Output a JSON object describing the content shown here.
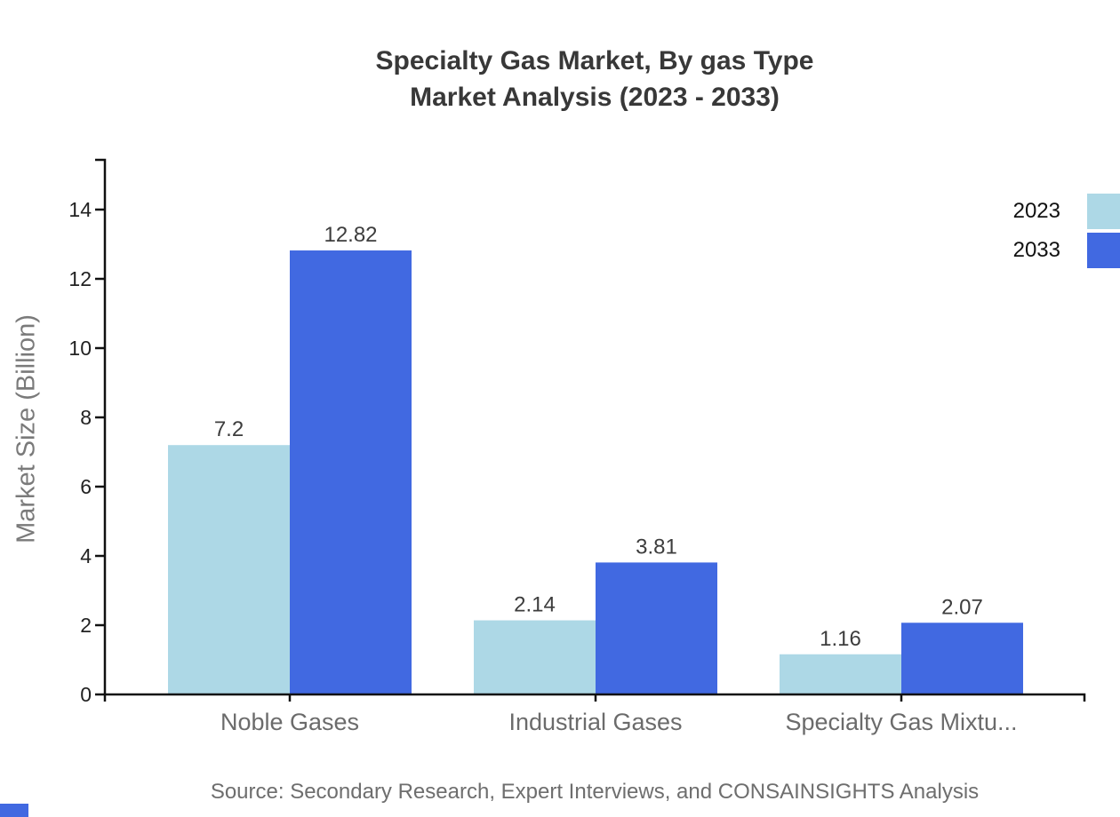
{
  "page": {
    "background": "#ffffff"
  },
  "accent_color": "#4169E1",
  "chart_data": {
    "type": "bar",
    "title": "Specialty Gas Market, By gas Type",
    "subtitle": "Market Analysis (2023 - 2033)",
    "ylabel": "Market Size (Billion)",
    "categories": [
      "Noble Gases",
      "Industrial Gases",
      "Specialty Gas Mixtu..."
    ],
    "series": [
      {
        "name": "2023",
        "color": "#ADD8E6",
        "values": [
          7.2,
          2.14,
          1.16
        ],
        "value_labels": [
          "7.2",
          "2.14",
          "1.16"
        ]
      },
      {
        "name": "2033",
        "color": "#4169E1",
        "values": [
          12.82,
          3.81,
          2.07
        ],
        "value_labels": [
          "12.82",
          "3.81",
          "2.07"
        ]
      }
    ],
    "yticks": [
      0,
      2,
      4,
      6,
      8,
      10,
      12,
      14
    ],
    "ylim": [
      0,
      15.4
    ],
    "grid": false,
    "legend_position": "top-right",
    "source": "Source: Secondary Research, Expert Interviews, and CONSAINSIGHTS Analysis"
  }
}
